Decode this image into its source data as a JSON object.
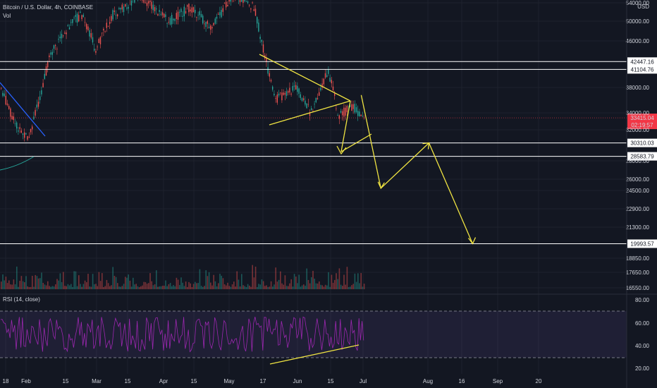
{
  "header": {
    "title": "Bitcoin / U.S. Dollar, 4h, COINBASE",
    "vol_label": "Vol",
    "rsi_label": "RSI (14, close)"
  },
  "colors": {
    "background": "#131722",
    "grid": "#1e222d",
    "up": "#26a69a",
    "down": "#ef5350",
    "annotation": "#f0e442",
    "trendline_blue": "#2962ff",
    "rsi_line": "#9c27b0",
    "level_line": "#ffffff",
    "price_tag": "#f23645",
    "arc": "#26a69a"
  },
  "chart_data": {
    "type": "candlestick",
    "symbol": "BTCUSD",
    "timeframe": "4h",
    "price_axis": {
      "currency": "USD",
      "ticks": [
        "54000.00",
        "50000.00",
        "46000.00",
        "38000.00",
        "34000.00",
        "32000.00",
        "28000.00",
        "26000.00",
        "24500.00",
        "22900.00",
        "21300.00",
        "18850.00",
        "17650.00",
        "16550.00"
      ]
    },
    "x_axis": {
      "ticks": [
        "18",
        "Feb",
        "15",
        "Mar",
        "15",
        "Apr",
        "15",
        "May",
        "17",
        "Jun",
        "15",
        "Jul",
        "Aug",
        "16",
        "Sep",
        "20"
      ]
    },
    "horizontal_levels": [
      {
        "label": "42447.16",
        "price": 42447.16
      },
      {
        "label": "41104.76",
        "price": 41104.76
      },
      {
        "label": "30310.03",
        "price": 30310.03
      },
      {
        "label": "28583.79",
        "price": 28583.79
      },
      {
        "label": "19993.57",
        "price": 19993.57
      }
    ],
    "current_price": {
      "price": "33415.04",
      "countdown": "02:19:57"
    },
    "projection_path": [
      {
        "date": "Jul 01",
        "price": 36800
      },
      {
        "date": "Jul 10",
        "price": 24800
      },
      {
        "date": "Aug 01",
        "price": 30310
      },
      {
        "date": "Aug 21",
        "price": 19993
      }
    ],
    "rsi": {
      "period": 14,
      "source": "close",
      "ticks": [
        "80.00",
        "60.00",
        "40.00",
        "20.00"
      ],
      "upper_band": 70,
      "lower_band": 30
    }
  }
}
